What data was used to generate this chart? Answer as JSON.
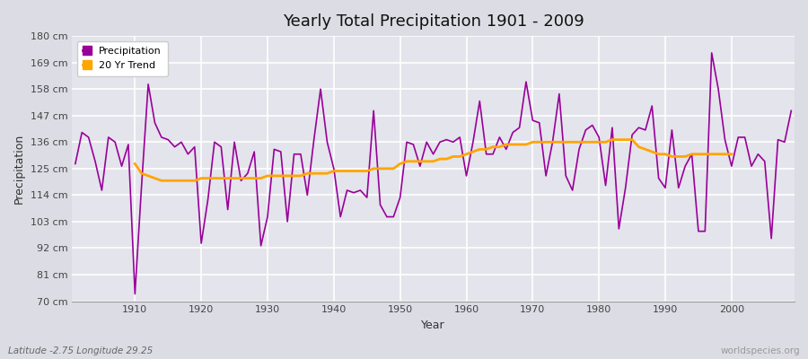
{
  "title": "Yearly Total Precipitation 1901 - 2009",
  "xlabel": "Year",
  "ylabel": "Precipitation",
  "subtitle": "Latitude -2.75 Longitude 29.25",
  "watermark": "worldspecies.org",
  "bg_color": "#dcdce4",
  "plot_bg_color": "#e4e4ec",
  "grid_color": "#ffffff",
  "precip_color": "#990099",
  "trend_color": "#ffa500",
  "ylim": [
    70,
    180
  ],
  "yticks": [
    70,
    81,
    92,
    103,
    114,
    125,
    136,
    147,
    158,
    169,
    180
  ],
  "ytick_labels": [
    "70 cm",
    "81 cm",
    "92 cm",
    "103 cm",
    "114 cm",
    "125 cm",
    "136 cm",
    "147 cm",
    "158 cm",
    "169 cm",
    "180 cm"
  ],
  "years": [
    1901,
    1902,
    1903,
    1904,
    1905,
    1906,
    1907,
    1908,
    1909,
    1910,
    1911,
    1912,
    1913,
    1914,
    1915,
    1916,
    1917,
    1918,
    1919,
    1920,
    1921,
    1922,
    1923,
    1924,
    1925,
    1926,
    1927,
    1928,
    1929,
    1930,
    1931,
    1932,
    1933,
    1934,
    1935,
    1936,
    1937,
    1938,
    1939,
    1940,
    1941,
    1942,
    1943,
    1944,
    1945,
    1946,
    1947,
    1948,
    1949,
    1950,
    1951,
    1952,
    1953,
    1954,
    1955,
    1956,
    1957,
    1958,
    1959,
    1960,
    1961,
    1962,
    1963,
    1964,
    1965,
    1966,
    1967,
    1968,
    1969,
    1970,
    1971,
    1972,
    1973,
    1974,
    1975,
    1976,
    1977,
    1978,
    1979,
    1980,
    1981,
    1982,
    1983,
    1984,
    1985,
    1986,
    1987,
    1988,
    1989,
    1990,
    1991,
    1992,
    1993,
    1994,
    1995,
    1996,
    1997,
    1998,
    1999,
    2000,
    2001,
    2002,
    2003,
    2004,
    2005,
    2006,
    2007,
    2008,
    2009
  ],
  "precip": [
    127,
    140,
    138,
    128,
    116,
    138,
    136,
    126,
    135,
    73,
    118,
    160,
    144,
    138,
    137,
    134,
    136,
    131,
    134,
    94,
    112,
    136,
    134,
    108,
    136,
    120,
    123,
    132,
    93,
    105,
    133,
    132,
    103,
    131,
    131,
    114,
    137,
    158,
    136,
    125,
    105,
    116,
    115,
    116,
    113,
    149,
    110,
    105,
    105,
    113,
    136,
    135,
    126,
    136,
    131,
    136,
    137,
    136,
    138,
    122,
    136,
    153,
    131,
    131,
    138,
    133,
    140,
    142,
    161,
    145,
    144,
    122,
    136,
    156,
    122,
    116,
    133,
    141,
    143,
    138,
    118,
    142,
    100,
    117,
    139,
    142,
    141,
    151,
    121,
    117,
    141,
    117,
    126,
    131,
    99,
    99,
    173,
    158,
    137,
    126,
    138,
    138,
    126,
    131,
    128,
    96,
    137,
    136,
    149
  ],
  "trend_years": [
    1910,
    1911,
    1912,
    1913,
    1914,
    1915,
    1916,
    1917,
    1918,
    1919,
    1920,
    1921,
    1922,
    1923,
    1924,
    1925,
    1926,
    1927,
    1928,
    1929,
    1930,
    1931,
    1932,
    1933,
    1934,
    1935,
    1936,
    1937,
    1938,
    1939,
    1940,
    1941,
    1942,
    1943,
    1944,
    1945,
    1946,
    1947,
    1948,
    1949,
    1950,
    1951,
    1952,
    1953,
    1954,
    1955,
    1956,
    1957,
    1958,
    1959,
    1960,
    1961,
    1962,
    1963,
    1964,
    1965,
    1966,
    1967,
    1968,
    1969,
    1970,
    1971,
    1972,
    1973,
    1974,
    1975,
    1976,
    1977,
    1978,
    1979,
    1980,
    1981,
    1982,
    1983,
    1984,
    1985,
    1986,
    1987,
    1988,
    1989,
    1990,
    1991,
    1992,
    1993,
    1994,
    1995,
    1996,
    1997,
    1998,
    1999,
    2000
  ],
  "trend": [
    127,
    123,
    122,
    121,
    120,
    120,
    120,
    120,
    120,
    120,
    121,
    121,
    121,
    121,
    121,
    121,
    121,
    121,
    121,
    121,
    122,
    122,
    122,
    122,
    122,
    122,
    123,
    123,
    123,
    123,
    124,
    124,
    124,
    124,
    124,
    124,
    125,
    125,
    125,
    125,
    127,
    128,
    128,
    128,
    128,
    128,
    129,
    129,
    130,
    130,
    131,
    132,
    133,
    133,
    134,
    134,
    135,
    135,
    135,
    135,
    136,
    136,
    136,
    136,
    136,
    136,
    136,
    136,
    136,
    136,
    136,
    136,
    137,
    137,
    137,
    137,
    134,
    133,
    132,
    131,
    131,
    130,
    130,
    130,
    131,
    131,
    131,
    131,
    131,
    131,
    131
  ],
  "xlim": [
    1900.5,
    2009.5
  ],
  "xticks": [
    1910,
    1920,
    1930,
    1940,
    1950,
    1960,
    1970,
    1980,
    1990,
    2000
  ]
}
